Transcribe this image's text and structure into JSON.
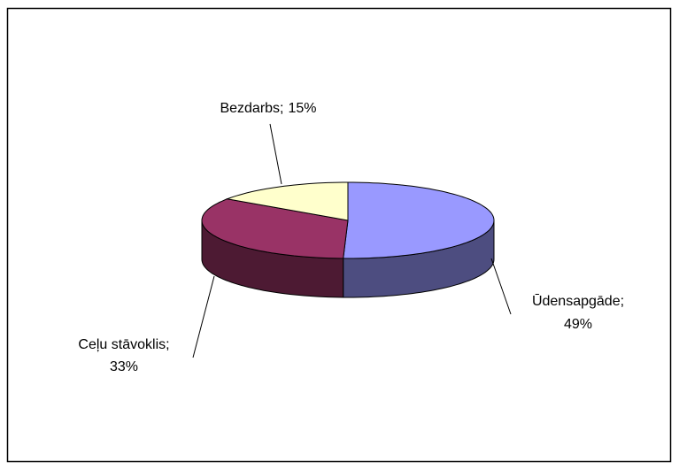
{
  "chart_data": {
    "type": "pie",
    "categories": [
      "Ūdensapgāde;",
      "Ceļu stāvoklis;",
      "Bezdarbs;"
    ],
    "values": [
      49,
      33,
      15
    ],
    "value_labels": [
      "49%",
      "33%",
      "15%"
    ],
    "colors": [
      "#9999ff",
      "#993366",
      "#ffffcc"
    ],
    "legend": false
  }
}
